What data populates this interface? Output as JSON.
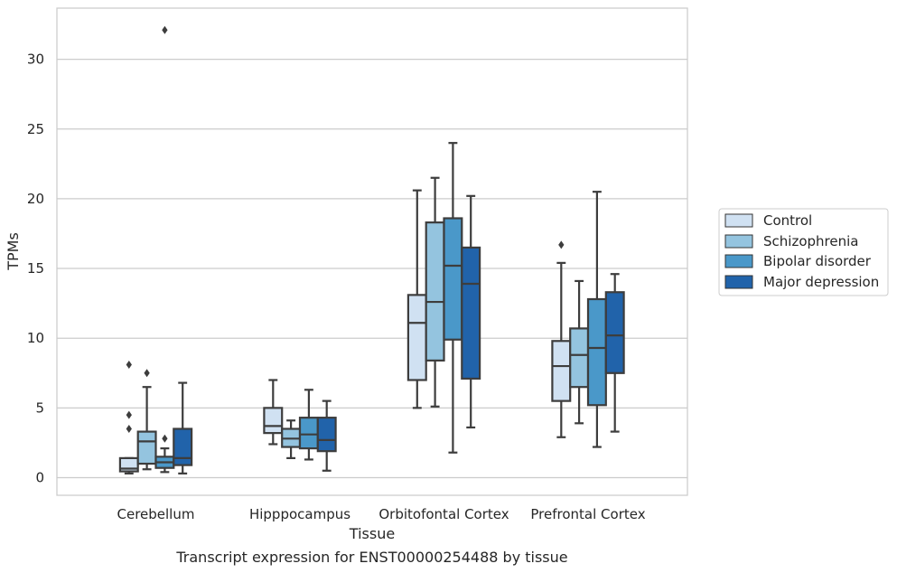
{
  "chart_data": {
    "type": "boxplot",
    "title": "",
    "caption": "Transcript expression for ENST00000254488 by tissue",
    "xlabel": "Tissue",
    "ylabel": "TPMs",
    "ylim": [
      -1.3,
      33.6
    ],
    "yticks": [
      0,
      5,
      10,
      15,
      20,
      25,
      30
    ],
    "grid": "horizontal",
    "legend_position": "right",
    "categories": [
      "Cerebellum",
      "Hipppocampus",
      "Orbitofontal Cortex",
      "Prefrontal Cortex"
    ],
    "series": [
      {
        "name": "Control",
        "color": "#d0e1f2",
        "boxes": [
          {
            "whislo": 0.3,
            "q1": 0.45,
            "med": 0.65,
            "q3": 1.4,
            "whishi": 1.4,
            "fliers": [
              3.5,
              4.5,
              8.1
            ]
          },
          {
            "whislo": 2.4,
            "q1": 3.2,
            "med": 3.7,
            "q3": 5.0,
            "whishi": 7.0,
            "fliers": []
          },
          {
            "whislo": 5.0,
            "q1": 7.0,
            "med": 11.1,
            "q3": 13.1,
            "whishi": 20.6,
            "fliers": []
          },
          {
            "whislo": 2.9,
            "q1": 5.5,
            "med": 8.0,
            "q3": 9.8,
            "whishi": 15.4,
            "fliers": [
              16.7
            ]
          }
        ]
      },
      {
        "name": "Schizophrenia",
        "color": "#94c4df",
        "boxes": [
          {
            "whislo": 0.6,
            "q1": 1.0,
            "med": 2.6,
            "q3": 3.3,
            "whishi": 6.5,
            "fliers": [
              7.5
            ]
          },
          {
            "whislo": 1.4,
            "q1": 2.2,
            "med": 2.8,
            "q3": 3.5,
            "whishi": 4.1,
            "fliers": []
          },
          {
            "whislo": 5.1,
            "q1": 8.4,
            "med": 12.6,
            "q3": 18.3,
            "whishi": 21.5,
            "fliers": []
          },
          {
            "whislo": 3.9,
            "q1": 6.5,
            "med": 8.8,
            "q3": 10.7,
            "whishi": 14.1,
            "fliers": []
          }
        ]
      },
      {
        "name": "Bipolar disorder",
        "color": "#4a98c9",
        "boxes": [
          {
            "whislo": 0.4,
            "q1": 0.7,
            "med": 1.1,
            "q3": 1.5,
            "whishi": 2.1,
            "fliers": [
              2.8,
              32.1
            ]
          },
          {
            "whislo": 1.3,
            "q1": 2.1,
            "med": 3.1,
            "q3": 4.3,
            "whishi": 6.3,
            "fliers": []
          },
          {
            "whislo": 1.8,
            "q1": 9.9,
            "med": 15.2,
            "q3": 18.6,
            "whishi": 24.0,
            "fliers": []
          },
          {
            "whislo": 2.2,
            "q1": 5.2,
            "med": 9.3,
            "q3": 12.8,
            "whishi": 20.5,
            "fliers": []
          }
        ]
      },
      {
        "name": "Major depression",
        "color": "#2163aa",
        "boxes": [
          {
            "whislo": 0.3,
            "q1": 0.9,
            "med": 1.4,
            "q3": 3.5,
            "whishi": 6.8,
            "fliers": []
          },
          {
            "whislo": 0.5,
            "q1": 1.9,
            "med": 2.7,
            "q3": 4.3,
            "whishi": 5.5,
            "fliers": []
          },
          {
            "whislo": 3.6,
            "q1": 7.1,
            "med": 13.9,
            "q3": 16.5,
            "whishi": 20.2,
            "fliers": []
          },
          {
            "whislo": 3.3,
            "q1": 7.5,
            "med": 10.2,
            "q3": 13.3,
            "whishi": 14.6,
            "fliers": []
          }
        ]
      }
    ]
  }
}
